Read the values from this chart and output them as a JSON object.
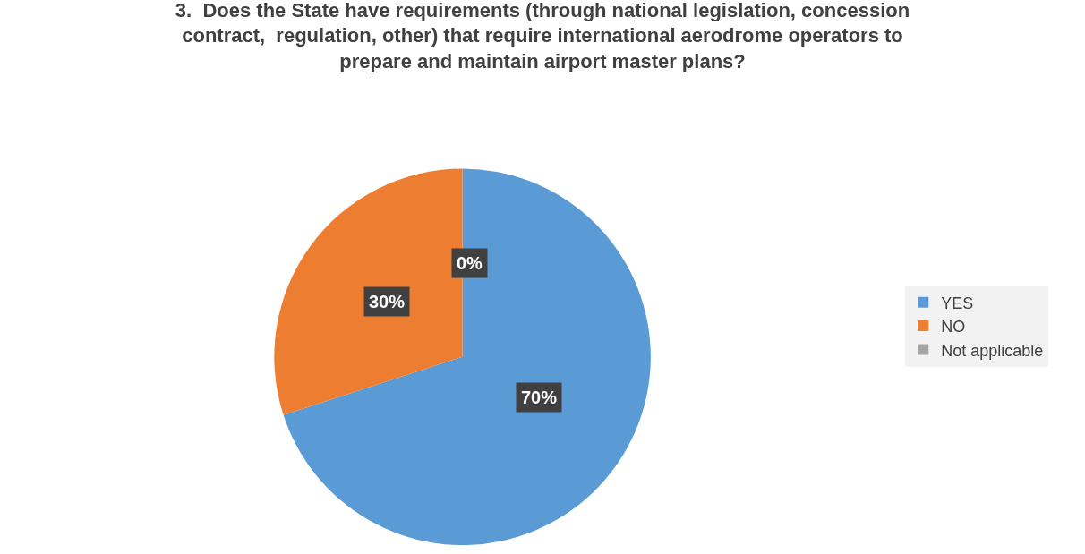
{
  "chart_data": {
    "type": "pie",
    "title": "3.  Does the State have requirements (through national legislation, concession contract,  regulation, other) that require international aerodrome operators to prepare and maintain airport master plans?",
    "categories": [
      "YES",
      "NO",
      "Not applicable"
    ],
    "values": [
      70,
      30,
      0
    ],
    "colors": [
      "#5b9bd5",
      "#ed7d31",
      "#a5a5a5"
    ],
    "value_labels": [
      "70%",
      "30%",
      "0%"
    ],
    "legend": "right"
  }
}
